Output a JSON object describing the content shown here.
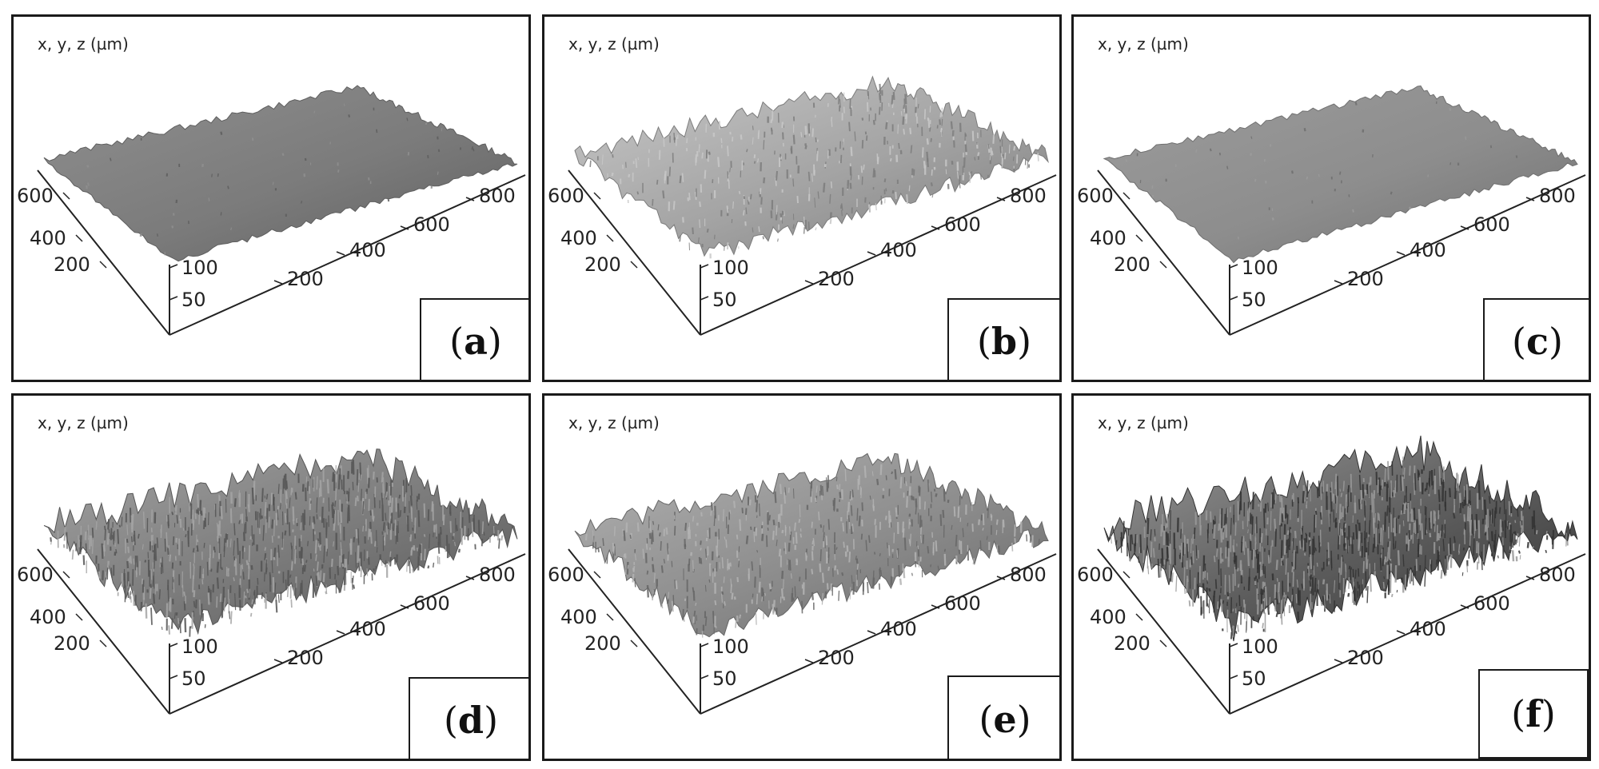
{
  "panels": [
    {
      "id": "a",
      "label_open": "(",
      "label_letter": "a",
      "label_close": ")",
      "units": "x, y, z (µm)",
      "tone": "#7b7b7b",
      "roughness": 0.06,
      "dark": "#5e5e5e",
      "light": "#8f8f8f"
    },
    {
      "id": "b",
      "label_open": "(",
      "label_letter": "b",
      "label_close": ")",
      "units": "x, y, z (µm)",
      "tone": "#a3a3a3",
      "roughness": 0.45,
      "dark": "#7c7c7c",
      "light": "#c8c8c8"
    },
    {
      "id": "c",
      "label_open": "(",
      "label_letter": "c",
      "label_close": ")",
      "units": "x, y, z (µm)",
      "tone": "#8d8d8d",
      "roughness": 0.05,
      "dark": "#6f6f6f",
      "light": "#9c9c9c"
    },
    {
      "id": "d",
      "label_open": "(",
      "label_letter": "d",
      "label_close": ")",
      "units": "x, y, z (µm)",
      "tone": "#7a7a7a",
      "roughness": 0.85,
      "dark": "#555555",
      "light": "#a4a4a4"
    },
    {
      "id": "e",
      "label_open": "(",
      "label_letter": "e",
      "label_close": ")",
      "units": "x, y, z (µm)",
      "tone": "#8c8c8c",
      "roughness": 0.6,
      "dark": "#666666",
      "light": "#b3b3b3"
    },
    {
      "id": "f",
      "label_open": "(",
      "label_letter": "f",
      "label_close": ")",
      "units": "x, y, z (µm)",
      "tone": "#5c5c5c",
      "roughness": 1.0,
      "dark": "#333333",
      "light": "#9a9a9a"
    }
  ],
  "axis_ticks": {
    "left": [
      "600",
      "400",
      "200"
    ],
    "right": [
      "800",
      "600",
      "400",
      "200"
    ],
    "z": [
      "100",
      "50"
    ]
  }
}
